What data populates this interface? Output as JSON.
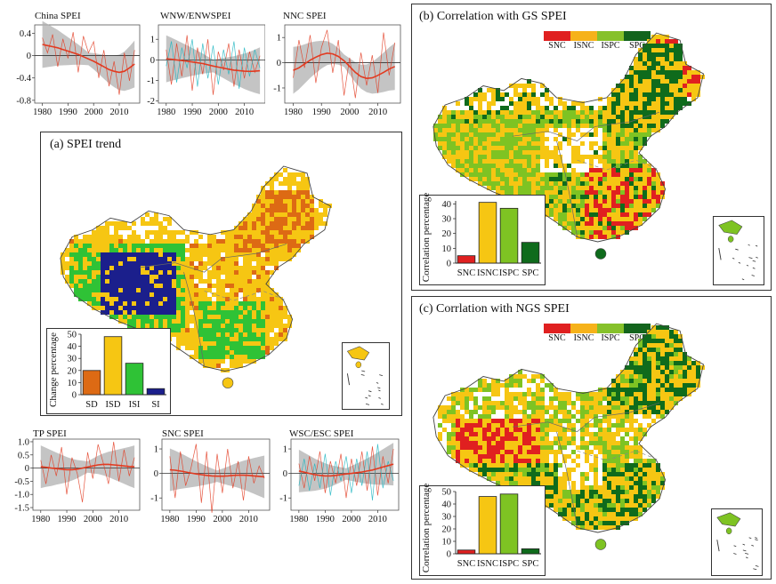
{
  "colors": {
    "red": "#e23a20",
    "orange": "#f2a01a",
    "yellowgreen": "#8cc63a",
    "darkgreen": "#1e6a2a",
    "sd": "#dd6a14",
    "isd": "#f6c613",
    "isi": "#2fc236",
    "si": "#1b1f8c",
    "snc": "#e02020",
    "isnc": "#f6c613",
    "ispc": "#7ec323",
    "spc": "#0f6b1c",
    "teal": "#1bb4bf",
    "band": "#b0b0b0"
  },
  "chart_data": [
    {
      "id": "china_spei",
      "type": "line",
      "title": "China SPEI",
      "x": [
        1980,
        1982,
        1984,
        1986,
        1988,
        1990,
        1992,
        1994,
        1996,
        1998,
        2000,
        2002,
        2004,
        2006,
        2008,
        2010,
        2012,
        2014,
        2016
      ],
      "series": [
        {
          "name": "annual",
          "values": [
            0.32,
            0.05,
            0.38,
            -0.2,
            0.3,
            -0.05,
            0.42,
            -0.3,
            0.35,
            0.05,
            0.25,
            -0.4,
            0.1,
            -0.55,
            -0.1,
            -0.7,
            0.05,
            -0.45,
            0.1
          ]
        },
        {
          "name": "trend",
          "values": [
            0.2,
            0.18,
            0.16,
            0.14,
            0.11,
            0.08,
            0.05,
            0.02,
            -0.02,
            -0.06,
            -0.1,
            -0.15,
            -0.2,
            -0.25,
            -0.28,
            -0.3,
            -0.28,
            -0.22,
            -0.15
          ]
        }
      ],
      "yticks": [
        "0.4",
        "0",
        "-0.4",
        "-0.8"
      ],
      "ylim": [
        -0.85,
        0.55
      ],
      "xticks": [
        "1980",
        "1990",
        "2000",
        "2010"
      ],
      "xlim": [
        1977,
        2018
      ]
    },
    {
      "id": "wnw_spei",
      "type": "line",
      "title": "WNW/ENWSPEI",
      "x": [
        1980,
        1982,
        1984,
        1986,
        1988,
        1990,
        1992,
        1994,
        1996,
        1998,
        2000,
        2002,
        2004,
        2006,
        2008,
        2010,
        2012,
        2014,
        2016
      ],
      "series": [
        {
          "name": "WNW",
          "values": [
            0.5,
            -1.2,
            0.8,
            -0.8,
            1.2,
            -1.5,
            0.6,
            -0.7,
            1.0,
            -1.7,
            0.4,
            -0.5,
            0.8,
            -1.3,
            0.5,
            -0.9,
            0.4,
            -0.6,
            0.2
          ]
        },
        {
          "name": "ENW",
          "values": [
            -0.3,
            0.9,
            -1.1,
            0.6,
            -0.4,
            1.0,
            -1.3,
            0.8,
            -0.9,
            0.7,
            -1.2,
            0.5,
            -0.7,
            0.9,
            -1.4,
            0.6,
            -0.8,
            0.5,
            -0.4
          ]
        },
        {
          "name": "trend",
          "values": [
            0.05,
            0.03,
            0.0,
            -0.03,
            -0.06,
            -0.1,
            -0.14,
            -0.18,
            -0.24,
            -0.3,
            -0.35,
            -0.4,
            -0.45,
            -0.5,
            -0.52,
            -0.55,
            -0.56,
            -0.55,
            -0.53
          ]
        }
      ],
      "yticks": [
        "1",
        "0",
        "-1",
        "-2"
      ],
      "ylim": [
        -2.1,
        1.7
      ],
      "xticks": [
        "1980",
        "1990",
        "2000",
        "2010"
      ],
      "xlim": [
        1977,
        2018
      ]
    },
    {
      "id": "nnc_spei",
      "type": "line",
      "title": "NNC SPEI",
      "x": [
        1980,
        1982,
        1984,
        1986,
        1988,
        1990,
        1992,
        1994,
        1996,
        1998,
        2000,
        2002,
        2004,
        2006,
        2008,
        2010,
        2012,
        2014,
        2016
      ],
      "series": [
        {
          "name": "annual",
          "values": [
            -0.6,
            0.9,
            -0.2,
            1.1,
            -0.8,
            0.6,
            1.3,
            -0.4,
            0.9,
            -1.3,
            0.2,
            -1.4,
            0.4,
            -0.9,
            0.3,
            -1.2,
            1.2,
            -0.5,
            0.8
          ]
        },
        {
          "name": "trend",
          "values": [
            -0.3,
            -0.2,
            -0.05,
            0.1,
            0.22,
            0.32,
            0.38,
            0.35,
            0.25,
            0.08,
            -0.15,
            -0.38,
            -0.55,
            -0.62,
            -0.6,
            -0.5,
            -0.38,
            -0.25,
            -0.15
          ]
        }
      ],
      "yticks": [
        "1",
        "0",
        "-1"
      ],
      "ylim": [
        -1.6,
        1.5
      ],
      "xticks": [
        "1980",
        "1990",
        "2000",
        "2010"
      ],
      "xlim": [
        1977,
        2018
      ]
    },
    {
      "id": "tp_spei",
      "type": "line",
      "title": "TP SPEI",
      "x": [
        1980,
        1982,
        1984,
        1986,
        1988,
        1990,
        1992,
        1994,
        1996,
        1998,
        2000,
        2002,
        2004,
        2006,
        2008,
        2010,
        2012,
        2014,
        2016
      ],
      "series": [
        {
          "name": "annual",
          "values": [
            0.3,
            -0.6,
            0.5,
            -0.3,
            0.8,
            -1.0,
            0.4,
            -0.2,
            -1.3,
            0.6,
            -0.4,
            0.9,
            0.2,
            -0.6,
            1.0,
            -0.5,
            0.7,
            -0.3,
            0.4
          ]
        },
        {
          "name": "trend",
          "values": [
            0.05,
            0.03,
            0.0,
            -0.02,
            -0.04,
            -0.06,
            -0.06,
            -0.04,
            0.0,
            0.04,
            0.08,
            0.12,
            0.14,
            0.14,
            0.12,
            0.1,
            0.08,
            0.06,
            0.05
          ]
        }
      ],
      "yticks": [
        "1.0",
        "0.5",
        "0",
        "-0.5",
        "-1.0",
        "-1.5"
      ],
      "ylim": [
        -1.6,
        1.1
      ],
      "xticks": [
        "1980",
        "1990",
        "2000",
        "2010"
      ],
      "xlim": [
        1977,
        2018
      ]
    },
    {
      "id": "snc_spei",
      "type": "line",
      "title": "SNC SPEI",
      "x": [
        1980,
        1982,
        1984,
        1986,
        1988,
        1990,
        1992,
        1994,
        1996,
        1998,
        2000,
        2002,
        2004,
        2006,
        2008,
        2010,
        2012,
        2014,
        2016
      ],
      "series": [
        {
          "name": "annual",
          "values": [
            0.7,
            -1.0,
            0.9,
            -0.5,
            0.2,
            1.2,
            -1.2,
            0.9,
            -1.6,
            0.8,
            -0.8,
            1.0,
            -0.6,
            0.5,
            -1.1,
            0.7,
            -0.4,
            0.3,
            -0.2
          ]
        },
        {
          "name": "trend",
          "values": [
            0.15,
            0.13,
            0.1,
            0.06,
            0.02,
            -0.02,
            -0.05,
            -0.08,
            -0.1,
            -0.11,
            -0.11,
            -0.1,
            -0.08,
            -0.07,
            -0.07,
            -0.08,
            -0.1,
            -0.12,
            -0.14
          ]
        }
      ],
      "yticks": [
        "1",
        "0",
        "-1"
      ],
      "ylim": [
        -1.5,
        1.4
      ],
      "xticks": [
        "1980",
        "1990",
        "2000",
        "2010"
      ],
      "xlim": [
        1977,
        2018
      ]
    },
    {
      "id": "wsc_spei",
      "type": "line",
      "title": "WSC/ESC SPEI",
      "x": [
        1980,
        1982,
        1984,
        1986,
        1988,
        1990,
        1992,
        1994,
        1996,
        1998,
        2000,
        2002,
        2004,
        2006,
        2008,
        2010,
        2012,
        2014,
        2016
      ],
      "series": [
        {
          "name": "WSC",
          "values": [
            0.4,
            -0.6,
            0.7,
            -0.3,
            0.9,
            -0.8,
            0.5,
            -0.4,
            0.8,
            -1.0,
            0.6,
            -0.5,
            0.9,
            -0.7,
            1.1,
            -0.9,
            0.7,
            -0.4,
            1.0
          ]
        },
        {
          "name": "ESC",
          "values": [
            -0.5,
            0.6,
            -0.7,
            0.4,
            -0.6,
            0.8,
            -0.9,
            0.5,
            -0.3,
            0.7,
            -0.8,
            0.6,
            -0.5,
            0.9,
            -1.1,
            1.2,
            -0.6,
            0.5,
            -0.3
          ]
        },
        {
          "name": "trend",
          "values": [
            0.1,
            0.05,
            0.0,
            -0.05,
            -0.08,
            -0.1,
            -0.1,
            -0.08,
            -0.05,
            -0.02,
            0.0,
            0.03,
            0.06,
            0.1,
            0.14,
            0.2,
            0.26,
            0.32,
            0.38
          ]
        }
      ],
      "yticks": [
        "1",
        "0",
        "-1"
      ],
      "ylim": [
        -1.5,
        1.4
      ],
      "xticks": [
        "1980",
        "1990",
        "2000",
        "2010"
      ],
      "xlim": [
        1977,
        2018
      ]
    },
    {
      "id": "trend_bar",
      "type": "bar",
      "ylabel": "Change percentage",
      "categories": [
        "SD",
        "ISD",
        "ISI",
        "SI"
      ],
      "values": [
        20,
        48,
        26,
        5
      ],
      "yticks": [
        "0",
        "10",
        "20",
        "30",
        "40",
        "50"
      ],
      "ylim": [
        0,
        50
      ]
    },
    {
      "id": "gs_bar",
      "type": "bar",
      "ylabel": "Correlation percentage",
      "categories": [
        "SNC",
        "ISNC",
        "ISPC",
        "SPC"
      ],
      "values": [
        5,
        41,
        37,
        14
      ],
      "yticks": [
        "0",
        "10",
        "20",
        "30",
        "40"
      ],
      "ylim": [
        0,
        42
      ]
    },
    {
      "id": "ngs_bar",
      "type": "bar",
      "ylabel": "Correlation percentage",
      "categories": [
        "SNC",
        "ISNC",
        "ISPC",
        "SPC"
      ],
      "values": [
        3,
        46,
        48,
        4
      ],
      "yticks": [
        "0",
        "10",
        "20",
        "30",
        "40",
        "50"
      ],
      "ylim": [
        0,
        50
      ]
    }
  ],
  "panels": {
    "a": {
      "title": "(a) SPEI trend"
    },
    "b": {
      "title": "(b) Correlation with GS SPEI",
      "legend": [
        "SNC",
        "ISNC",
        "ISPC",
        "SPC"
      ]
    },
    "c": {
      "title": "(c) Corrlation with NGS SPEI",
      "legend": [
        "SNC",
        "ISNC",
        "ISPC",
        "SPC"
      ]
    }
  }
}
